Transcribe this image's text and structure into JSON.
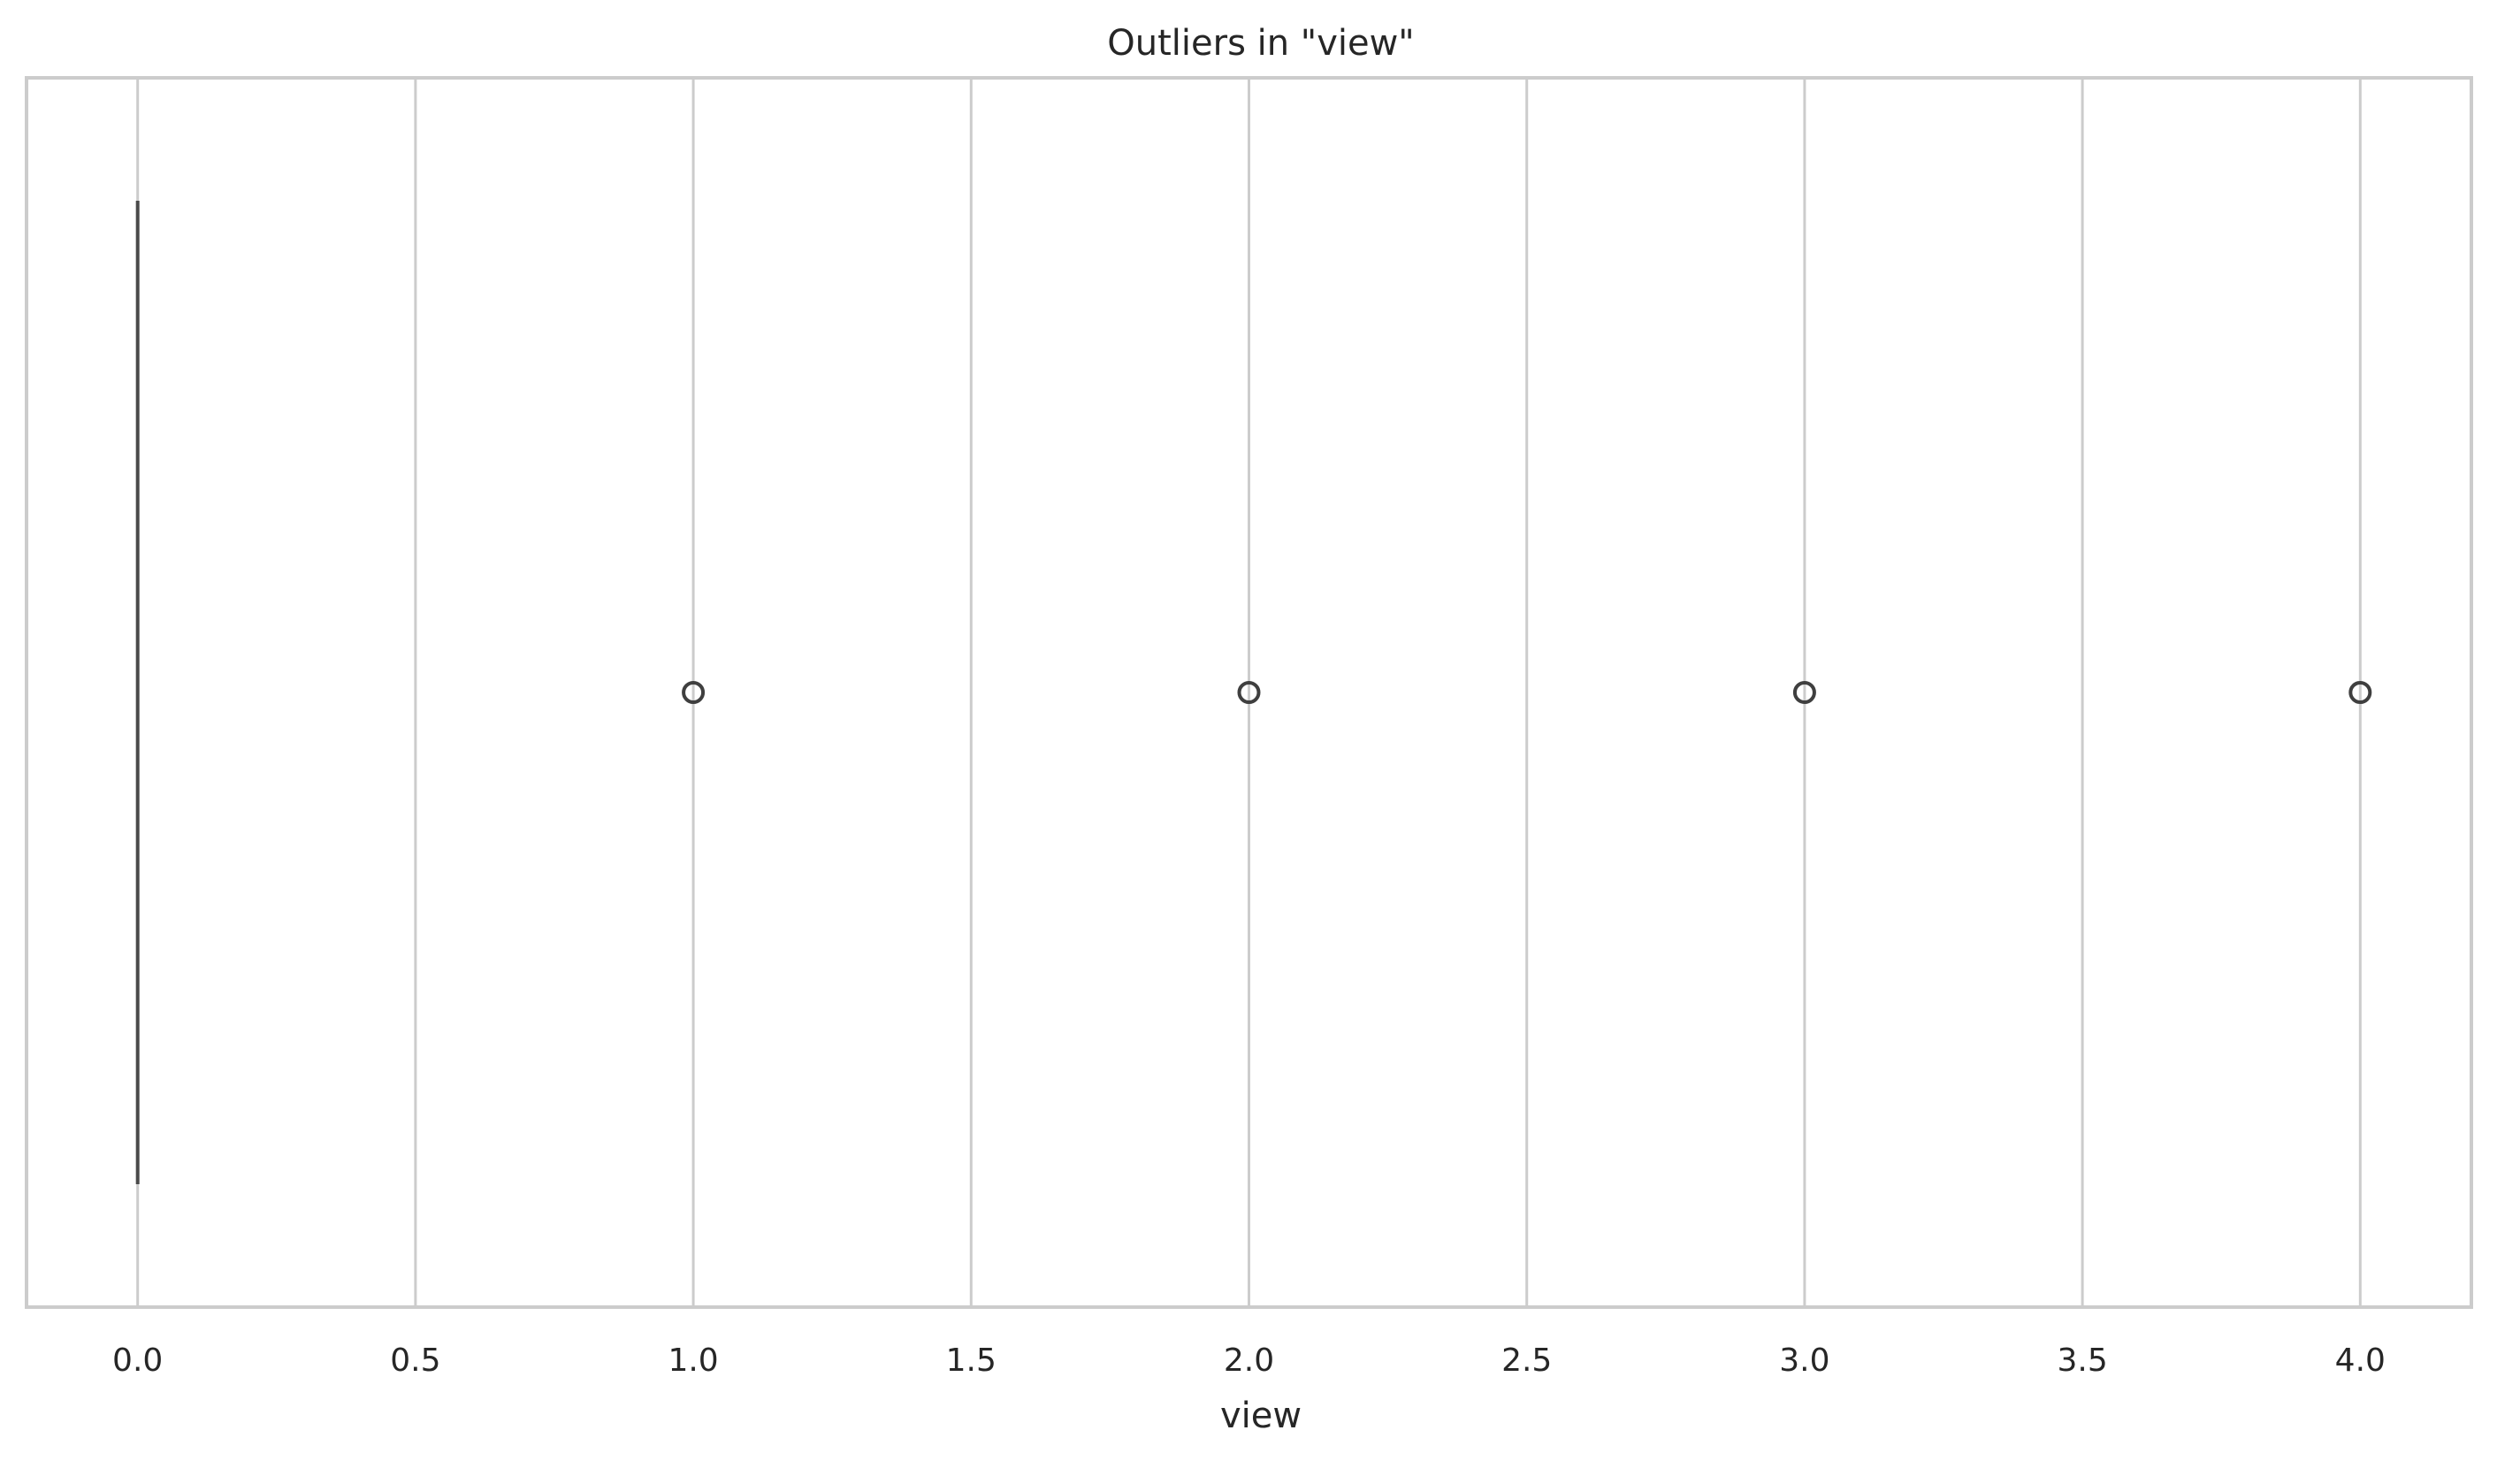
{
  "chart_data": {
    "type": "box",
    "title": "Outliers in \"view\"",
    "xlabel": "view",
    "ylabel": "",
    "orientation": "horizontal",
    "xlim": [
      -0.2,
      4.2
    ],
    "xticks": [
      0.0,
      0.5,
      1.0,
      1.5,
      2.0,
      2.5,
      3.0,
      3.5,
      4.0
    ],
    "xtick_labels": [
      "0.0",
      "0.5",
      "1.0",
      "1.5",
      "2.0",
      "2.5",
      "3.0",
      "3.5",
      "4.0"
    ],
    "grid": true,
    "box": {
      "min": 0,
      "q1": 0,
      "median": 0,
      "q3": 0,
      "max": 0
    },
    "outliers": [
      1,
      2,
      3,
      4
    ],
    "colors": {
      "grid": "#cccccc",
      "frame": "#cccccc",
      "box_line": "#4a4a4a",
      "outlier_edge": "#3f3f3f",
      "text": "#262626"
    }
  }
}
